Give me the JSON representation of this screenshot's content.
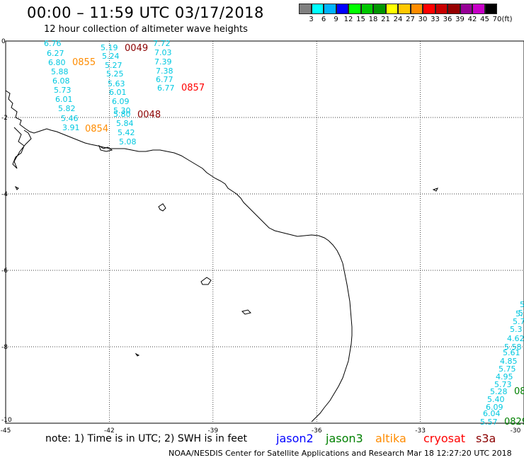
{
  "header": {
    "title": "00:00 – 11:59 UTC 03/17/2018",
    "subtitle": "12 hour collection of altimeter wave heights"
  },
  "legend": {
    "unit": "(ft)",
    "colors": [
      "#808080",
      "#00ffff",
      "#00b4ff",
      "#0000ff",
      "#00ff00",
      "#00c800",
      "#009600",
      "#ffff00",
      "#ffc800",
      "#ff8c00",
      "#ff0000",
      "#c80000",
      "#960000",
      "#960096",
      "#c800c8",
      "#000000"
    ],
    "labels": [
      "3",
      "6",
      "9",
      "12",
      "15",
      "18",
      "21",
      "24",
      "27",
      "30",
      "33",
      "36",
      "39",
      "42",
      "45",
      "70"
    ]
  },
  "axes": {
    "x_ticks": [
      "-45",
      "-42",
      "-39",
      "-36",
      "-33",
      "-30"
    ],
    "y_ticks": [
      "0",
      "-2",
      "-4",
      "-6",
      "-8",
      "-10"
    ]
  },
  "track_times": [
    {
      "text": "0049",
      "color": "#8b0000"
    },
    {
      "text": "0855",
      "color": "#ff8c00"
    },
    {
      "text": "0857",
      "color": "#ff0000"
    },
    {
      "text": "0048",
      "color": "#8b0000"
    },
    {
      "text": "0854",
      "color": "#ff8c00"
    },
    {
      "text": "08",
      "color": "#008000"
    },
    {
      "text": "0829",
      "color": "#008000"
    }
  ],
  "swh_values": {
    "track_a": [
      "6.76",
      "6.27",
      "6.80",
      "5.88",
      "6.08",
      "5.73",
      "6.01",
      "5.82",
      "5.46",
      "3.91"
    ],
    "track_b": [
      "5.19",
      "5.24",
      "5.27",
      "5.25",
      "5.63",
      "6.01",
      "6.09",
      "5.30",
      "5.80",
      "5.84",
      "5.42",
      "5.08"
    ],
    "track_c": [
      "7.72",
      "7.03",
      "7.39",
      "7.38",
      "6.77",
      "6.77"
    ],
    "track_d": [
      "5.",
      "5.",
      "5.7",
      "5.7",
      "5.3",
      "4.62",
      "5.58",
      "5.61",
      "4.85",
      "5.75",
      "4.95",
      "5.73",
      "5.28",
      "5.40",
      "6.09",
      "6.04",
      "5.57"
    ]
  },
  "footer": {
    "note": "note: 1) Time is in UTC; 2) SWH is in feet",
    "satellites": [
      {
        "name": "jason2",
        "color": "#0000ff"
      },
      {
        "name": "jason3",
        "color": "#008000"
      },
      {
        "name": "altika",
        "color": "#ff8c00"
      },
      {
        "name": "cryosat",
        "color": "#ff0000"
      },
      {
        "name": "s3a",
        "color": "#8b0000"
      }
    ],
    "credit": "NOAA/NESDIS Center for Satellite Applications and Research   Mar 18 12:27:20 UTC 2018"
  }
}
